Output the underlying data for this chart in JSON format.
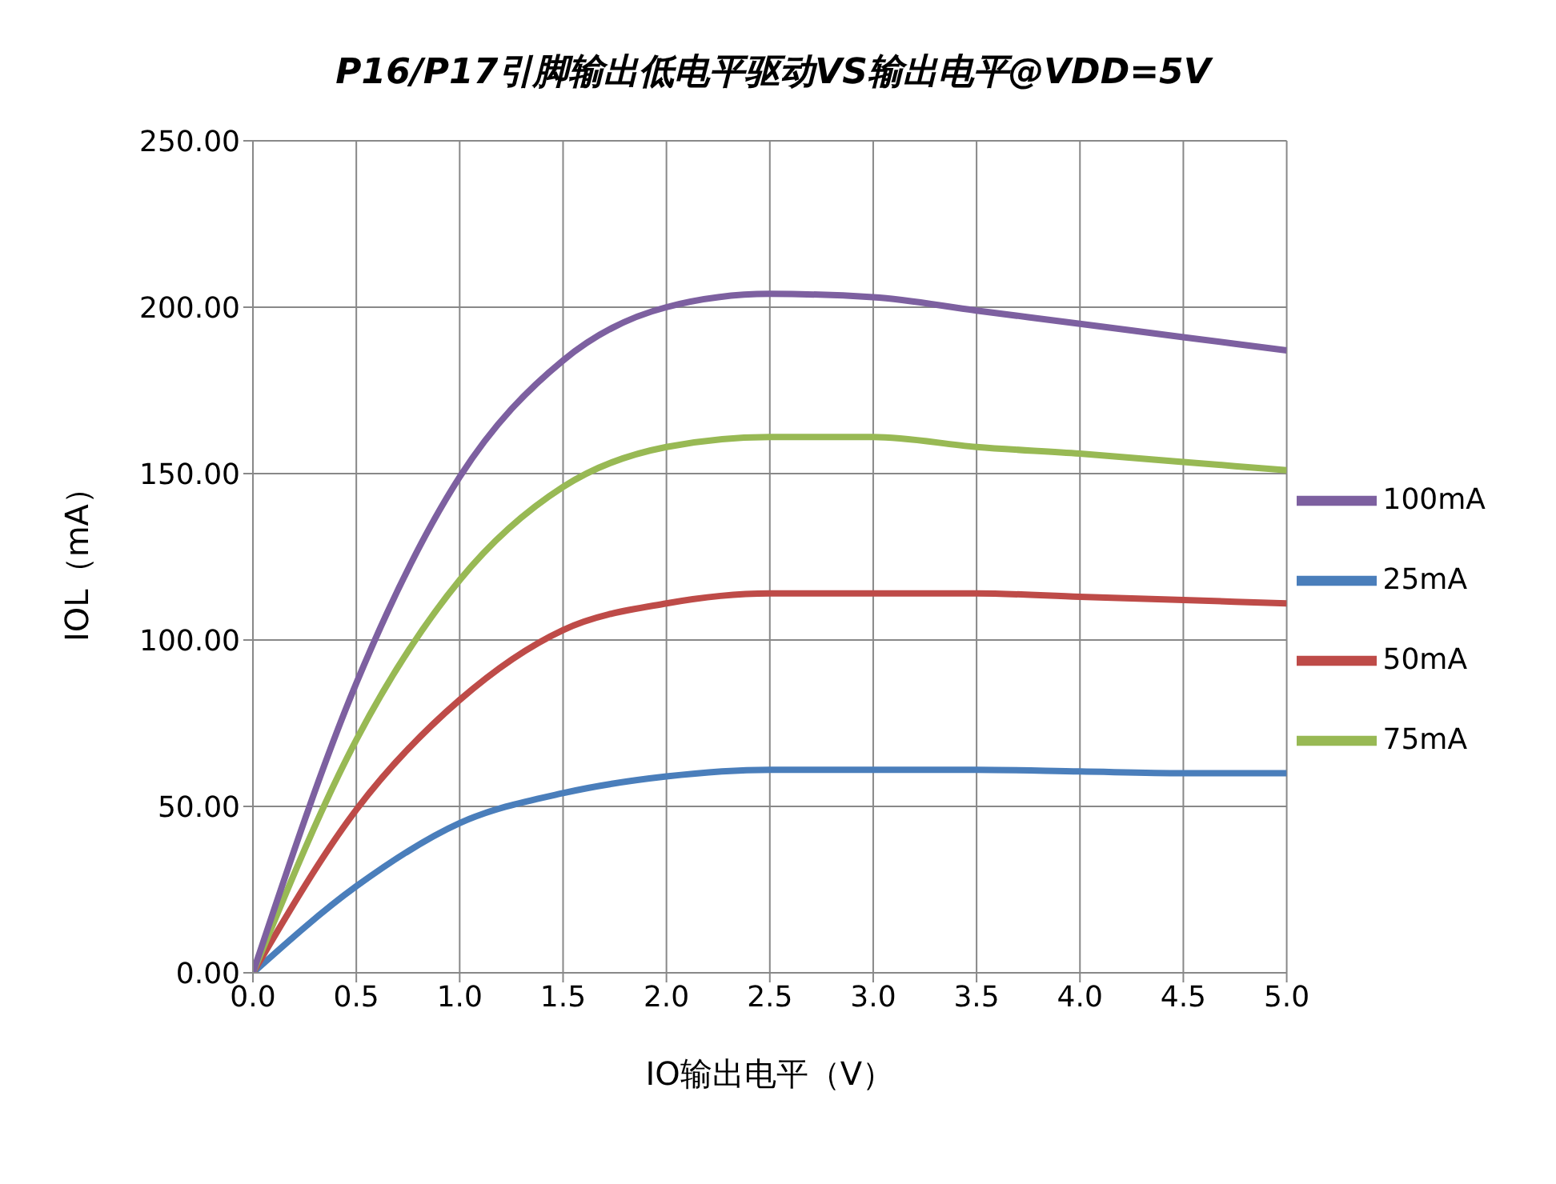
{
  "chart_data": {
    "type": "line",
    "title": "P16/P17引脚输出低电平驱动VS输出电平@VDD=5V",
    "xlabel": "IO输出电平（V）",
    "ylabel": "IOL（mA）",
    "x": [
      0,
      0.5,
      1,
      1.5,
      2,
      2.5,
      3,
      3.5,
      4,
      4.5,
      5
    ],
    "series": [
      {
        "name": "25mA",
        "color": "#4a7ebb",
        "values": [
          0,
          26,
          45,
          54,
          59,
          61,
          61,
          61,
          60.5,
          60,
          60
        ]
      },
      {
        "name": "50mA",
        "color": "#be4b48",
        "values": [
          0,
          49,
          82,
          103,
          111,
          114,
          114,
          114,
          113,
          112,
          111
        ]
      },
      {
        "name": "75mA",
        "color": "#98b954",
        "values": [
          0,
          70,
          118,
          146,
          158,
          161,
          161,
          158,
          156,
          153.5,
          151
        ]
      },
      {
        "name": "100mA",
        "color": "#7d60a0",
        "values": [
          0,
          87,
          149,
          184,
          200,
          204,
          203,
          199,
          195,
          191,
          187
        ]
      }
    ],
    "xlim": [
      0,
      5
    ],
    "xticks": [
      {
        "value": 0,
        "label": "0.0"
      },
      {
        "value": 0.5,
        "label": "0.5"
      },
      {
        "value": 1,
        "label": "1.0"
      },
      {
        "value": 1.5,
        "label": "1.5"
      },
      {
        "value": 2,
        "label": "2.0"
      },
      {
        "value": 2.5,
        "label": "2.5"
      },
      {
        "value": 3,
        "label": "3.0"
      },
      {
        "value": 3.5,
        "label": "3.5"
      },
      {
        "value": 4,
        "label": "4.0"
      },
      {
        "value": 4.5,
        "label": "4.5"
      },
      {
        "value": 5,
        "label": "5.0"
      }
    ],
    "ylim": [
      0,
      250
    ],
    "yticks": [
      {
        "value": 0,
        "label": "0.00"
      },
      {
        "value": 50,
        "label": "50.00"
      },
      {
        "value": 100,
        "label": "100.00"
      },
      {
        "value": 150,
        "label": "150.00"
      },
      {
        "value": 200,
        "label": "200.00"
      },
      {
        "value": 250,
        "label": "250.00"
      }
    ],
    "grid": true,
    "legend": "right",
    "marker": "none",
    "line_style": "solid"
  }
}
